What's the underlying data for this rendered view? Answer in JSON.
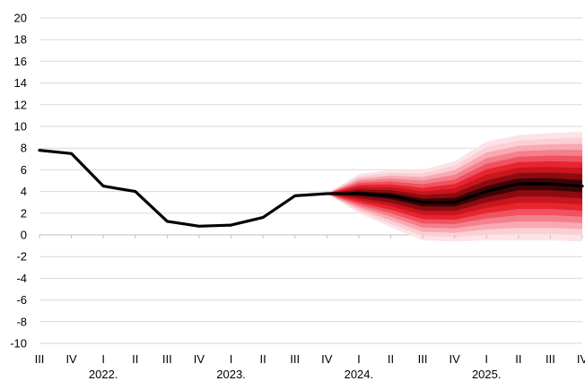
{
  "chart_data": {
    "type": "line",
    "title": "",
    "xlabel": "",
    "ylabel": "",
    "ylim": [
      -10,
      20
    ],
    "yticks": [
      -10,
      -8,
      -6,
      -4,
      -2,
      0,
      2,
      4,
      6,
      8,
      10,
      12,
      14,
      16,
      18,
      20
    ],
    "grid": true,
    "categories": [
      "III",
      "IV",
      "I",
      "II",
      "III",
      "IV",
      "I",
      "II",
      "III",
      "IV",
      "I",
      "II",
      "III",
      "IV",
      "I",
      "II",
      "III",
      "IV"
    ],
    "year_labels": [
      {
        "label": "2022.",
        "quarter_index": 2
      },
      {
        "label": "2023.",
        "quarter_index": 6
      },
      {
        "label": "2024.",
        "quarter_index": 10
      },
      {
        "label": "2025.",
        "quarter_index": 14
      }
    ],
    "series": [
      {
        "values": [
          7.8,
          7.5,
          4.5,
          4.0,
          1.25,
          0.8,
          0.9,
          1.6,
          3.6,
          3.8,
          3.8,
          3.6,
          3.0,
          3.0,
          4.0,
          4.7,
          4.7,
          4.5
        ],
        "color": "#000000"
      }
    ],
    "fan_chart": {
      "start_index": 9,
      "median": [
        3.8,
        3.8,
        3.6,
        3.0,
        3.0,
        4.0,
        4.7,
        4.7,
        4.5
      ],
      "outer_upper": [
        3.8,
        5.6,
        6.0,
        6.0,
        6.8,
        8.6,
        9.2,
        9.4,
        9.5
      ],
      "outer_lower": [
        3.8,
        2.0,
        0.7,
        -0.5,
        -0.6,
        -0.5,
        -0.5,
        -0.5,
        -0.6
      ],
      "band_colors": [
        "#fde3e7",
        "#fbcfd4",
        "#f8a9b1",
        "#f4808b",
        "#ef5361",
        "#e8242e",
        "#c8151e",
        "#8c0b10",
        "#3d0405"
      ]
    }
  }
}
